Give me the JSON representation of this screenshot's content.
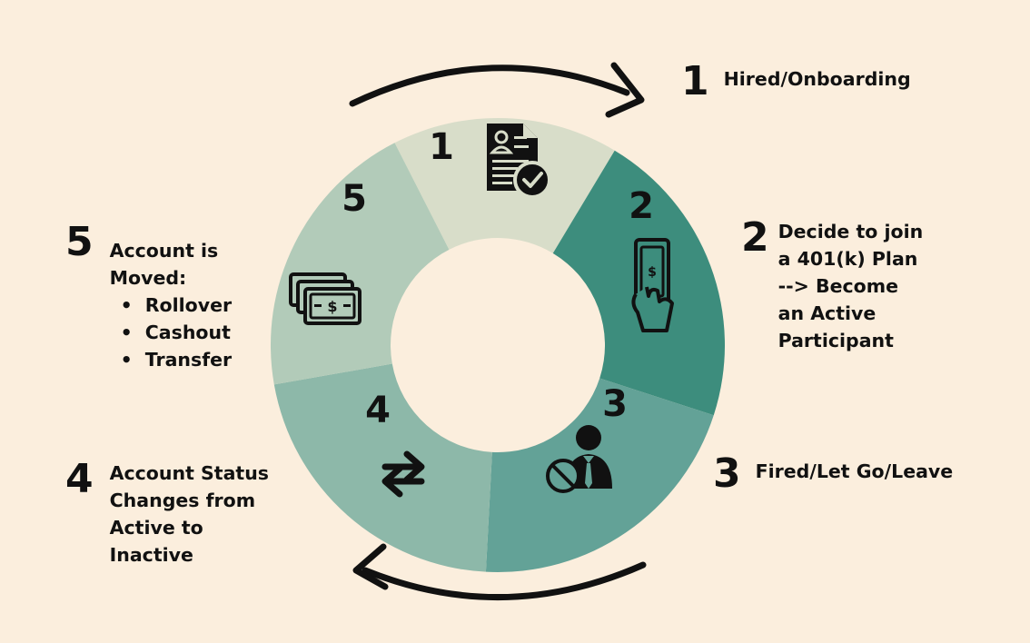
{
  "colors": {
    "background": "#fbeedd",
    "segment_1": "#d8ddc9",
    "segment_2": "#3d8d7d",
    "segment_3": "#63a297",
    "segment_4": "#8db8a9",
    "segment_5": "#b2cbb9",
    "ink": "#111111"
  },
  "cycle": {
    "segments": [
      {
        "number": "1",
        "icon": "document-check-icon"
      },
      {
        "number": "2",
        "icon": "hand-money-icon"
      },
      {
        "number": "3",
        "icon": "fired-person-icon"
      },
      {
        "number": "4",
        "icon": "swap-arrows-icon"
      },
      {
        "number": "5",
        "icon": "cash-stack-icon"
      }
    ],
    "arrows": [
      "clockwise-arrow-top",
      "clockwise-arrow-bottom"
    ]
  },
  "steps": [
    {
      "number": "1",
      "lines": [
        "Hired/Onboarding"
      ]
    },
    {
      "number": "2",
      "lines": [
        "Decide to join",
        "a 401(k) Plan",
        "--> Become",
        "an Active",
        "Participant"
      ]
    },
    {
      "number": "3",
      "lines": [
        "Fired/Let Go/Leave"
      ]
    },
    {
      "number": "4",
      "lines": [
        "Account Status",
        "Changes from",
        "Active to",
        "Inactive"
      ]
    },
    {
      "number": "5",
      "lines": [
        "Account is",
        "Moved:"
      ],
      "bullets": [
        "Rollover",
        "Cashout",
        "Transfer"
      ]
    }
  ]
}
